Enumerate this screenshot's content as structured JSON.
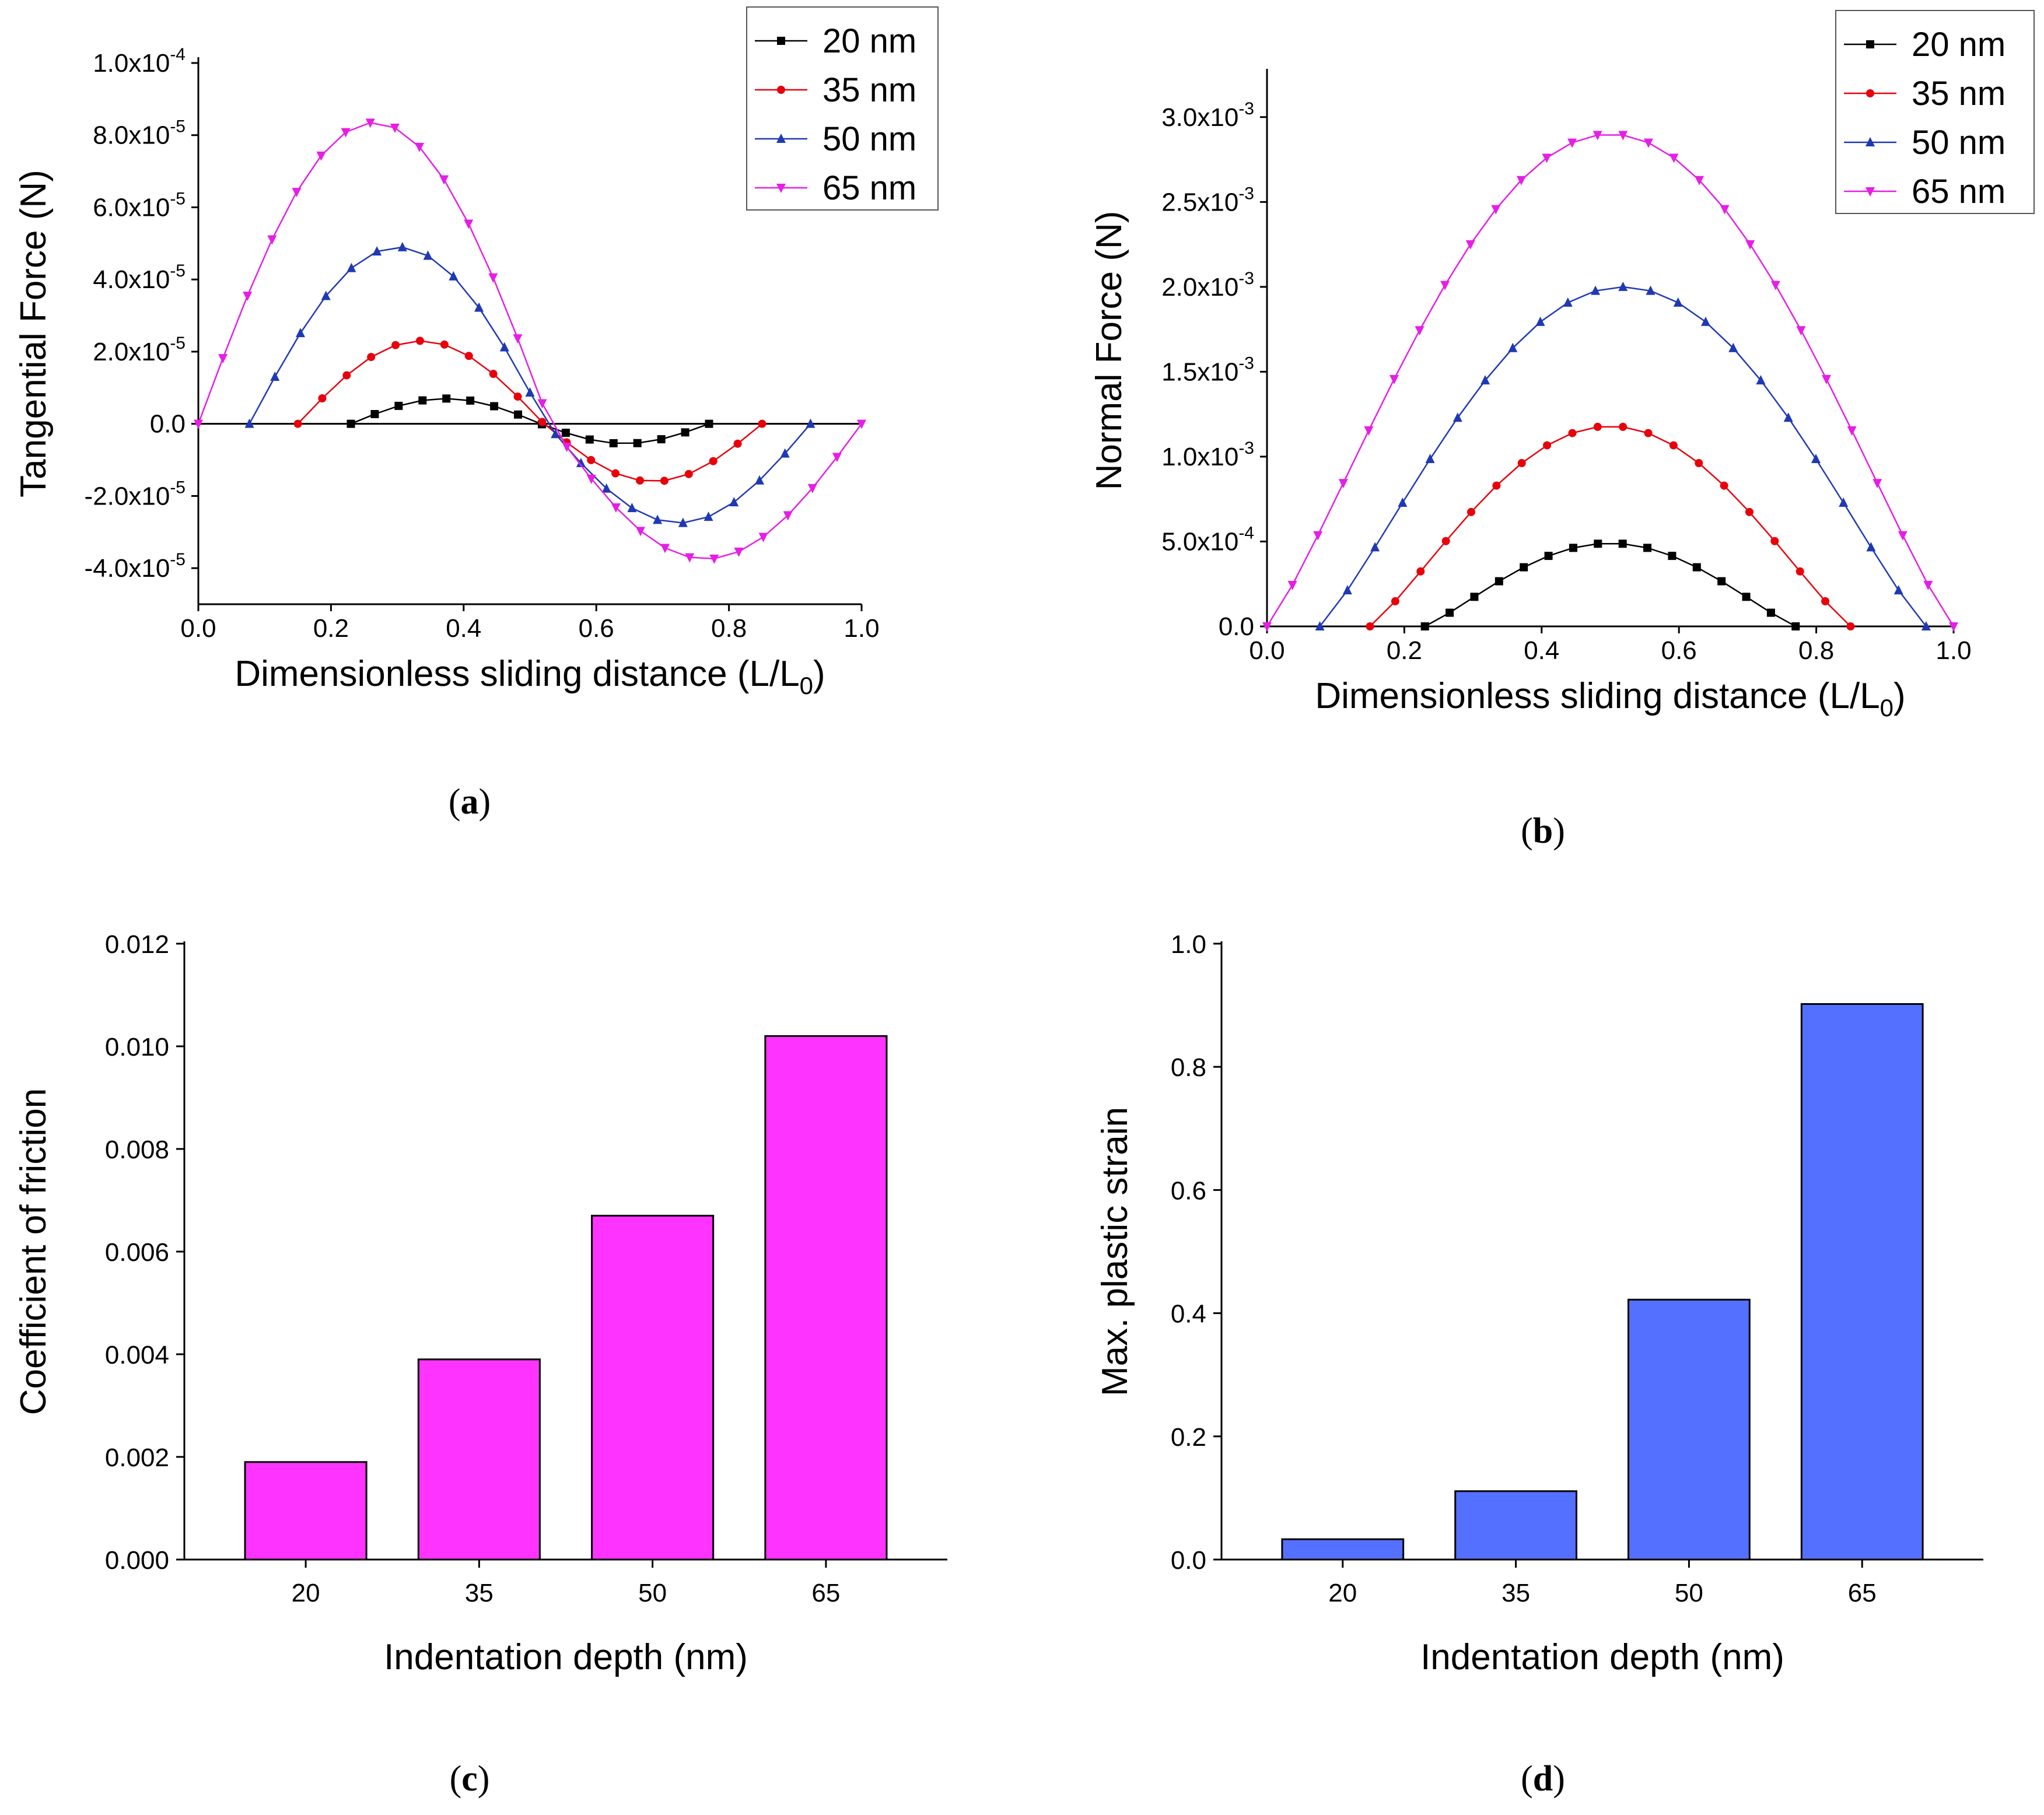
{
  "captions": {
    "a": "a",
    "b": "b",
    "c": "c",
    "d": "d"
  },
  "chart_data": [
    {
      "id": "a",
      "type": "line",
      "title": "",
      "xlabel": "Dimensionless sliding distance (L/L",
      "xlabel_sub": "0",
      "xlabel_end": ")",
      "ylabel": "Tangential Force (N)",
      "xlim": [
        0,
        1.0
      ],
      "ylim": [
        -5e-05,
        0.0001
      ],
      "xticks": [
        "0.0",
        "0.2",
        "0.4",
        "0.6",
        "0.8",
        "1.0"
      ],
      "yticks": [
        {
          "v": 0.0001,
          "m": "1.0x10",
          "e": "-4"
        },
        {
          "v": 8e-05,
          "m": "8.0x10",
          "e": "-5"
        },
        {
          "v": 6e-05,
          "m": "6.0x10",
          "e": "-5"
        },
        {
          "v": 4e-05,
          "m": "4.0x10",
          "e": "-5"
        },
        {
          "v": 2e-05,
          "m": "2.0x10",
          "e": "-5"
        },
        {
          "v": 0,
          "m": "0.0",
          "e": ""
        },
        {
          "v": -2e-05,
          "m": "-2.0x10",
          "e": "-5"
        },
        {
          "v": -4e-05,
          "m": "-4.0x10",
          "e": "-5"
        }
      ],
      "zero_line": true,
      "legend_position": "top-right",
      "series": [
        {
          "name": "20 nm",
          "color": "#000000",
          "marker": "square",
          "x0": 0.23,
          "x1": 0.77,
          "peak": 7e-06,
          "trough": -5.5e-06,
          "points": 16
        },
        {
          "name": "35 nm",
          "color": "#e8000b",
          "marker": "circle",
          "x0": 0.15,
          "x1": 0.85,
          "peak": 2.3e-05,
          "trough": -1.6e-05,
          "points": 20
        },
        {
          "name": "50 nm",
          "color": "#1f39b4",
          "marker": "triangle-up",
          "x0": 0.077,
          "x1": 0.923,
          "peak": 4.9e-05,
          "trough": -2.75e-05,
          "points": 23
        },
        {
          "name": "65 nm",
          "color": "#e61ee6",
          "marker": "triangle-down",
          "x0": 0.0,
          "x1": 1.0,
          "peak": 8.35e-05,
          "trough": -3.75e-05,
          "points": 28
        }
      ]
    },
    {
      "id": "b",
      "type": "line",
      "title": "",
      "xlabel": "Dimensionless sliding distance (L/L",
      "xlabel_sub": "0",
      "xlabel_end": ")",
      "ylabel": "Normal Force (N)",
      "xlim": [
        0,
        1.0
      ],
      "ylim": [
        0,
        0.00325
      ],
      "xticks": [
        "0.0",
        "0.2",
        "0.4",
        "0.6",
        "0.8",
        "1.0"
      ],
      "yticks": [
        {
          "v": 0.003,
          "m": "3.0x10",
          "e": "-3"
        },
        {
          "v": 0.0025,
          "m": "2.5x10",
          "e": "-3"
        },
        {
          "v": 0.002,
          "m": "2.0x10",
          "e": "-3"
        },
        {
          "v": 0.0015,
          "m": "1.5x10",
          "e": "-3"
        },
        {
          "v": 0.001,
          "m": "1.0x10",
          "e": "-3"
        },
        {
          "v": 0.0005,
          "m": "5.0x10",
          "e": "-4"
        },
        {
          "v": 0,
          "m": "0.0",
          "e": ""
        }
      ],
      "zero_line": false,
      "legend_position": "top-right",
      "series": [
        {
          "name": "20 nm",
          "color": "#000000",
          "marker": "square",
          "x0": 0.23,
          "x1": 0.77,
          "peak": 0.00049,
          "points": 16
        },
        {
          "name": "35 nm",
          "color": "#e8000b",
          "marker": "circle",
          "x0": 0.15,
          "x1": 0.85,
          "peak": 0.00118,
          "points": 20
        },
        {
          "name": "50 nm",
          "color": "#1f39b4",
          "marker": "triangle-up",
          "x0": 0.077,
          "x1": 0.96,
          "peak": 0.002,
          "points": 23
        },
        {
          "name": "65 nm",
          "color": "#e61ee6",
          "marker": "triangle-down",
          "x0": 0.0,
          "x1": 1.0,
          "peak": 0.0029,
          "points": 28
        }
      ]
    },
    {
      "id": "c",
      "type": "bar",
      "title": "",
      "xlabel": "Indentation depth (nm)",
      "ylabel": "Coefficient of friction",
      "categories": [
        "20",
        "35",
        "50",
        "65"
      ],
      "values": [
        0.0019,
        0.0039,
        0.0067,
        0.0102
      ],
      "ylim": [
        0,
        0.012
      ],
      "yticks": [
        "0.000",
        "0.002",
        "0.004",
        "0.006",
        "0.008",
        "0.010",
        "0.012"
      ],
      "color": "#ff33ff"
    },
    {
      "id": "d",
      "type": "bar",
      "title": "",
      "xlabel": "Indentation depth (nm)",
      "ylabel": "Max. plastic strain",
      "categories": [
        "20",
        "35",
        "50",
        "65"
      ],
      "values": [
        0.033,
        0.111,
        0.422,
        0.902
      ],
      "ylim": [
        0,
        1.0
      ],
      "yticks": [
        "0.0",
        "0.2",
        "0.4",
        "0.6",
        "0.8",
        "1.0"
      ],
      "color": "#5470ff"
    }
  ]
}
